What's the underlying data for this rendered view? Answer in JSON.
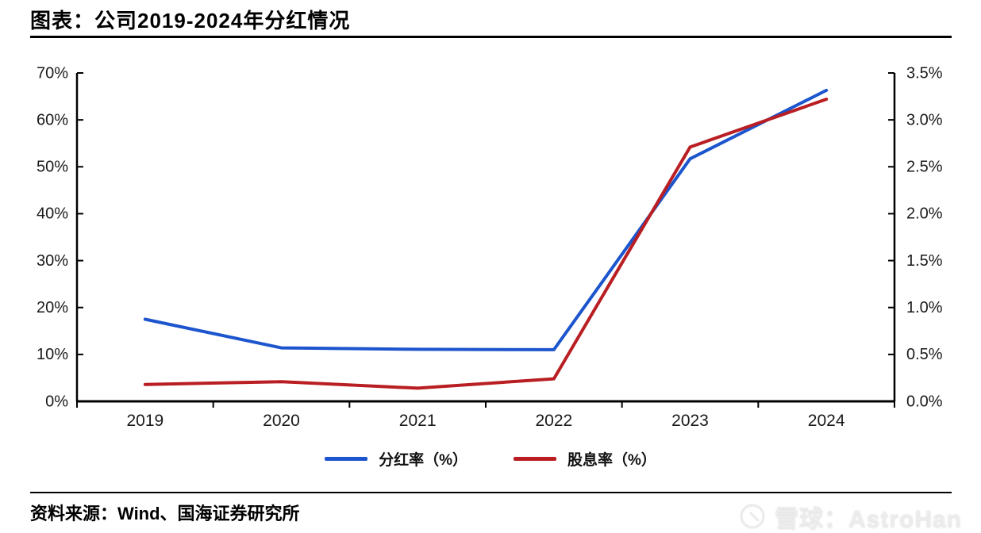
{
  "header": {
    "title": "图表：公司2019-2024年分红情况"
  },
  "footer": {
    "source": "资料来源：Wind、国海证券研究所",
    "watermark": "雪球：AstroHan"
  },
  "chart_data": {
    "type": "line",
    "title": "公司2019-2024年分红情况",
    "categories": [
      "2019",
      "2020",
      "2021",
      "2022",
      "2023",
      "2024"
    ],
    "series": [
      {
        "name": "分红率（%）",
        "axis": "left",
        "color": "#1C55CD",
        "values": [
          17.5,
          11.4,
          11.1,
          11.0,
          51.7,
          66.3
        ]
      },
      {
        "name": "股息率（%）",
        "axis": "right",
        "color": "#B91E23",
        "values": [
          0.18,
          0.21,
          0.14,
          0.24,
          2.71,
          3.22
        ]
      }
    ],
    "left_axis": {
      "min": 0,
      "max": 70,
      "step": 10,
      "tick_labels": [
        "0%",
        "10%",
        "20%",
        "30%",
        "40%",
        "50%",
        "60%",
        "70%"
      ]
    },
    "right_axis": {
      "min": 0,
      "max": 3.5,
      "step": 0.5,
      "tick_labels": [
        "0.0%",
        "0.5%",
        "1.0%",
        "1.5%",
        "2.0%",
        "2.5%",
        "3.0%",
        "3.5%"
      ]
    },
    "legend_position": "bottom",
    "grid": false,
    "axis_color": "#000000",
    "label_color": "#1a1a1a"
  }
}
